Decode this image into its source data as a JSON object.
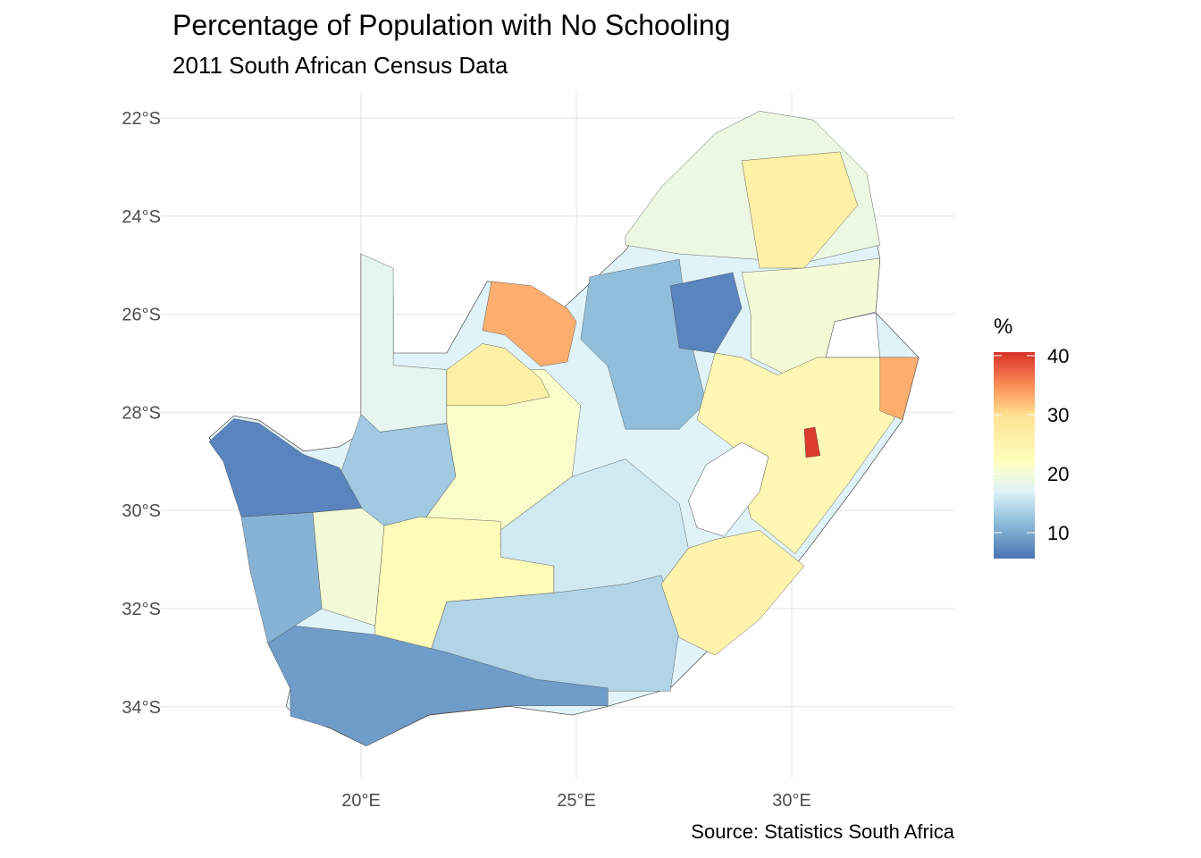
{
  "title": "Percentage of Population with No Schooling",
  "subtitle": "2011 South African Census Data",
  "caption": "Source: Statistics South Africa",
  "chart_data": {
    "type": "choropleth",
    "title": "Percentage of Population with No Schooling",
    "subtitle": "2011 South African Census Data",
    "caption": "Source: Statistics South Africa",
    "x_ticks": [
      {
        "value": 20,
        "label": "20°E"
      },
      {
        "value": 25,
        "label": "25°E"
      },
      {
        "value": 30,
        "label": "30°E"
      }
    ],
    "y_ticks": [
      {
        "value": -22,
        "label": "22°S"
      },
      {
        "value": -24,
        "label": "24°S"
      },
      {
        "value": -26,
        "label": "26°S"
      },
      {
        "value": -28,
        "label": "28°S"
      },
      {
        "value": -30,
        "label": "30°S"
      },
      {
        "value": -32,
        "label": "32°S"
      },
      {
        "value": -34,
        "label": "34°S"
      }
    ],
    "xlim": [
      15.35,
      33.78
    ],
    "ylim": [
      -35.44,
      -21.49
    ],
    "grid": true,
    "legend": {
      "title": "%",
      "position": "right",
      "range": [
        5.6,
        40.6
      ],
      "ticks": [
        {
          "value": 10,
          "label": "10"
        },
        {
          "value": 20,
          "label": "20"
        },
        {
          "value": 30,
          "label": "30"
        },
        {
          "value": 40,
          "label": "40"
        }
      ],
      "colors": [
        {
          "value": 5.6,
          "color": "#4a74b4"
        },
        {
          "value": 12,
          "color": "#91bfdb"
        },
        {
          "value": 17,
          "color": "#e0f3f8"
        },
        {
          "value": 22,
          "color": "#ffffbf"
        },
        {
          "value": 30,
          "color": "#fee090"
        },
        {
          "value": 35,
          "color": "#fc8d59"
        },
        {
          "value": 40.6,
          "color": "#d73027"
        }
      ]
    },
    "outline": [
      [
        16.47,
        -28.52
      ],
      [
        17.05,
        -28.07
      ],
      [
        17.63,
        -28.16
      ],
      [
        18.67,
        -28.79
      ],
      [
        19.5,
        -28.7
      ],
      [
        20.0,
        -28.43
      ],
      [
        20.0,
        -24.77
      ],
      [
        20.75,
        -25.6
      ],
      [
        20.75,
        -26.79
      ],
      [
        21.99,
        -26.79
      ],
      [
        22.93,
        -25.33
      ],
      [
        23.86,
        -25.42
      ],
      [
        24.69,
        -25.88
      ],
      [
        26.14,
        -24.7
      ],
      [
        26.97,
        -23.69
      ],
      [
        28.22,
        -22.6
      ],
      [
        29.25,
        -22.15
      ],
      [
        30.5,
        -22.33
      ],
      [
        30.91,
        -22.51
      ],
      [
        31.74,
        -23.42
      ],
      [
        32.05,
        -24.88
      ],
      [
        31.95,
        -25.97
      ],
      [
        32.95,
        -26.88
      ],
      [
        32.57,
        -28.16
      ],
      [
        31.54,
        -29.43
      ],
      [
        30.29,
        -30.89
      ],
      [
        29.25,
        -31.98
      ],
      [
        28.22,
        -32.71
      ],
      [
        27.18,
        -33.62
      ],
      [
        25.73,
        -33.99
      ],
      [
        24.9,
        -34.17
      ],
      [
        23.44,
        -33.99
      ],
      [
        21.58,
        -34.17
      ],
      [
        20.12,
        -34.8
      ],
      [
        19.29,
        -34.44
      ],
      [
        18.46,
        -34.17
      ],
      [
        18.26,
        -33.99
      ],
      [
        18.36,
        -33.62
      ],
      [
        17.84,
        -32.71
      ],
      [
        17.43,
        -30.16
      ],
      [
        16.8,
        -28.89
      ]
    ],
    "regions": [
      {
        "value": 18,
        "coords": [
          [
            20.0,
            -24.77
          ],
          [
            20.75,
            -25.06
          ],
          [
            20.75,
            -27.04
          ],
          [
            21.99,
            -27.13
          ],
          [
            21.99,
            -28.22
          ],
          [
            20.44,
            -28.4
          ],
          [
            20.0,
            -28.04
          ]
        ]
      },
      {
        "value": 13,
        "coords": [
          [
            20.0,
            -28.04
          ],
          [
            20.44,
            -28.4
          ],
          [
            21.99,
            -28.22
          ],
          [
            22.2,
            -29.31
          ],
          [
            21.37,
            -30.31
          ],
          [
            20.54,
            -30.49
          ],
          [
            20.02,
            -30.13
          ],
          [
            19.5,
            -29.31
          ],
          [
            19.71,
            -28.77
          ]
        ]
      },
      {
        "value": 21,
        "coords": [
          [
            21.99,
            -27.13
          ],
          [
            24.27,
            -27.13
          ],
          [
            25.1,
            -27.86
          ],
          [
            24.9,
            -29.31
          ],
          [
            23.24,
            -30.4
          ],
          [
            21.37,
            -30.31
          ],
          [
            22.2,
            -29.31
          ],
          [
            21.99,
            -28.22
          ]
        ]
      },
      {
        "value": 26,
        "coords": [
          [
            21.99,
            -27.13
          ],
          [
            22.82,
            -26.6
          ],
          [
            23.34,
            -26.69
          ],
          [
            24.17,
            -27.31
          ],
          [
            24.38,
            -27.68
          ],
          [
            23.34,
            -27.86
          ],
          [
            21.99,
            -27.86
          ]
        ]
      },
      {
        "value": 33,
        "coords": [
          [
            23.03,
            -25.33
          ],
          [
            23.96,
            -25.42
          ],
          [
            24.79,
            -25.88
          ],
          [
            25.0,
            -26.15
          ],
          [
            24.79,
            -26.97
          ],
          [
            24.17,
            -27.06
          ],
          [
            23.34,
            -26.42
          ],
          [
            22.82,
            -26.33
          ]
        ]
      },
      {
        "value": 7,
        "coords": [
          [
            16.47,
            -28.6
          ],
          [
            17.05,
            -28.13
          ],
          [
            17.63,
            -28.22
          ],
          [
            18.67,
            -28.86
          ],
          [
            19.5,
            -29.13
          ],
          [
            20.02,
            -29.95
          ],
          [
            18.88,
            -30.04
          ],
          [
            17.22,
            -30.13
          ],
          [
            16.8,
            -29.0
          ]
        ]
      },
      {
        "value": 11,
        "coords": [
          [
            17.22,
            -30.13
          ],
          [
            18.88,
            -30.04
          ],
          [
            19.09,
            -32.0
          ],
          [
            18.46,
            -32.35
          ],
          [
            17.84,
            -32.71
          ],
          [
            17.43,
            -31.25
          ]
        ]
      },
      {
        "value": 20,
        "coords": [
          [
            18.88,
            -30.04
          ],
          [
            20.02,
            -29.95
          ],
          [
            20.54,
            -30.31
          ],
          [
            20.33,
            -32.35
          ],
          [
            19.09,
            -32.0
          ]
        ]
      },
      {
        "value": 23,
        "coords": [
          [
            20.54,
            -30.31
          ],
          [
            21.37,
            -30.13
          ],
          [
            23.24,
            -30.22
          ],
          [
            23.24,
            -30.77
          ],
          [
            24.48,
            -30.95
          ],
          [
            24.48,
            -31.68
          ],
          [
            21.99,
            -31.86
          ],
          [
            21.58,
            -32.96
          ],
          [
            20.33,
            -32.96
          ],
          [
            20.33,
            -32.35
          ]
        ]
      },
      {
        "value": 16,
        "coords": [
          [
            24.9,
            -29.31
          ],
          [
            26.14,
            -28.95
          ],
          [
            27.39,
            -29.86
          ],
          [
            27.6,
            -30.77
          ],
          [
            26.97,
            -31.5
          ],
          [
            26.14,
            -31.68
          ],
          [
            24.48,
            -31.86
          ],
          [
            24.48,
            -31.13
          ],
          [
            23.24,
            -30.95
          ],
          [
            23.24,
            -30.4
          ]
        ]
      },
      {
        "value": 14,
        "coords": [
          [
            21.99,
            -31.86
          ],
          [
            24.48,
            -31.68
          ],
          [
            26.14,
            -31.5
          ],
          [
            26.97,
            -31.32
          ],
          [
            27.39,
            -32.41
          ],
          [
            27.18,
            -33.68
          ],
          [
            25.73,
            -33.68
          ],
          [
            24.07,
            -33.5
          ],
          [
            21.99,
            -32.96
          ],
          [
            21.58,
            -32.96
          ]
        ]
      },
      {
        "value": 9,
        "coords": [
          [
            17.84,
            -32.71
          ],
          [
            18.46,
            -32.35
          ],
          [
            20.33,
            -32.53
          ],
          [
            21.99,
            -32.89
          ],
          [
            24.07,
            -33.44
          ],
          [
            25.73,
            -33.62
          ],
          [
            25.73,
            -33.98
          ],
          [
            23.45,
            -33.98
          ],
          [
            21.58,
            -34.16
          ],
          [
            20.12,
            -34.8
          ],
          [
            19.29,
            -34.43
          ],
          [
            18.36,
            -34.19
          ],
          [
            18.36,
            -33.64
          ]
        ]
      },
      {
        "value": 25,
        "coords": [
          [
            27.6,
            -30.77
          ],
          [
            28.22,
            -30.59
          ],
          [
            29.25,
            -30.4
          ],
          [
            30.29,
            -31.13
          ],
          [
            29.25,
            -32.22
          ],
          [
            28.22,
            -32.95
          ],
          [
            27.39,
            -32.59
          ],
          [
            26.97,
            -31.5
          ]
        ]
      },
      {
        "value": 19,
        "coords": [
          [
            26.14,
            -24.41
          ],
          [
            26.97,
            -23.41
          ],
          [
            28.22,
            -22.32
          ],
          [
            29.25,
            -21.86
          ],
          [
            30.5,
            -22.04
          ],
          [
            31.74,
            -23.13
          ],
          [
            32.05,
            -24.59
          ],
          [
            30.29,
            -24.95
          ],
          [
            28.84,
            -24.86
          ],
          [
            27.39,
            -24.77
          ],
          [
            26.14,
            -24.59
          ]
        ]
      },
      {
        "value": 26,
        "coords": [
          [
            28.84,
            -22.87
          ],
          [
            31.12,
            -22.69
          ],
          [
            31.53,
            -23.78
          ],
          [
            30.29,
            -25.06
          ],
          [
            29.25,
            -25.06
          ],
          [
            29.05,
            -23.96
          ]
        ]
      },
      {
        "value": 12,
        "coords": [
          [
            25.31,
            -25.24
          ],
          [
            27.39,
            -24.88
          ],
          [
            27.6,
            -26.34
          ],
          [
            28.01,
            -27.8
          ],
          [
            27.39,
            -28.34
          ],
          [
            26.14,
            -28.34
          ],
          [
            25.73,
            -27.06
          ],
          [
            25.1,
            -26.51
          ]
        ]
      },
      {
        "value": 7,
        "coords": [
          [
            27.18,
            -25.42
          ],
          [
            28.63,
            -25.15
          ],
          [
            28.84,
            -25.88
          ],
          [
            28.22,
            -26.79
          ],
          [
            27.39,
            -26.69
          ]
        ]
      },
      {
        "value": 20,
        "coords": [
          [
            28.84,
            -25.15
          ],
          [
            30.29,
            -25.06
          ],
          [
            32.05,
            -24.86
          ],
          [
            31.95,
            -25.95
          ],
          [
            31.0,
            -26.15
          ],
          [
            30.79,
            -26.88
          ],
          [
            29.88,
            -27.24
          ],
          [
            29.05,
            -26.88
          ],
          [
            29.05,
            -26.0
          ]
        ]
      },
      {
        "value": 24,
        "coords": [
          [
            28.22,
            -26.79
          ],
          [
            28.84,
            -26.88
          ],
          [
            29.67,
            -27.24
          ],
          [
            30.6,
            -26.88
          ],
          [
            32.75,
            -26.88
          ],
          [
            32.37,
            -28.15
          ],
          [
            31.33,
            -29.43
          ],
          [
            30.08,
            -30.88
          ],
          [
            29.05,
            -30.15
          ],
          [
            28.63,
            -28.7
          ],
          [
            27.8,
            -28.15
          ]
        ]
      },
      {
        "value": 33,
        "coords": [
          [
            32.05,
            -26.88
          ],
          [
            32.95,
            -26.88
          ],
          [
            32.57,
            -28.15
          ],
          [
            32.05,
            -27.97
          ]
        ]
      },
      {
        "value": 40,
        "coords": [
          [
            30.29,
            -28.34
          ],
          [
            30.54,
            -28.3
          ],
          [
            30.66,
            -28.88
          ],
          [
            30.33,
            -28.92
          ]
        ]
      }
    ],
    "holes": [
      [
        [
          27.6,
          -29.8
        ],
        [
          28.01,
          -29.07
        ],
        [
          28.84,
          -28.61
        ],
        [
          29.46,
          -28.9
        ],
        [
          29.25,
          -29.62
        ],
        [
          28.43,
          -30.53
        ],
        [
          27.8,
          -30.35
        ]
      ],
      [
        [
          31.0,
          -26.15
        ],
        [
          31.95,
          -25.97
        ],
        [
          32.05,
          -26.88
        ],
        [
          30.79,
          -26.88
        ]
      ]
    ]
  }
}
